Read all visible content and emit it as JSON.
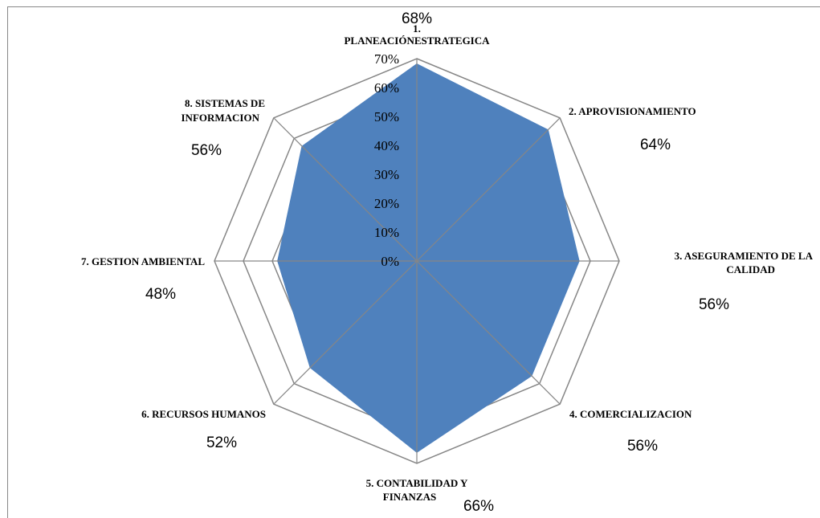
{
  "chart_data": {
    "type": "radar",
    "categories": [
      [
        "1.",
        "PLANEACIÓNESTRATEGICA"
      ],
      [
        "2.    APROVISIONAMIENTO"
      ],
      [
        "3.    ASEGURAMIENTO DE LA",
        "CALIDAD"
      ],
      [
        "4.    COMERCIALIZACION"
      ],
      [
        "5.    CONTABILIDAD Y",
        "FINANZAS"
      ],
      [
        "6.    RECURSOS HUMANOS"
      ],
      [
        "7.    GESTION AMBIENTAL"
      ],
      [
        "8.    SISTEMAS DE",
        "INFORMACION"
      ]
    ],
    "values": [
      68,
      64,
      56,
      56,
      66,
      52,
      48,
      56
    ],
    "value_labels": [
      "68%",
      "64%",
      "56%",
      "56%",
      "66%",
      "52%",
      "48%",
      "56%"
    ],
    "color": "#4f81bd",
    "ylim": [
      0,
      70
    ],
    "yticks": [
      {
        "value": 0,
        "label": "0%"
      },
      {
        "value": 10,
        "label": "10%"
      },
      {
        "value": 20,
        "label": "20%"
      },
      {
        "value": 30,
        "label": "30%"
      },
      {
        "value": 40,
        "label": "40%"
      },
      {
        "value": 50,
        "label": "50%"
      },
      {
        "value": 60,
        "label": "60%"
      },
      {
        "value": 70,
        "label": "70%"
      }
    ],
    "grid": true
  }
}
